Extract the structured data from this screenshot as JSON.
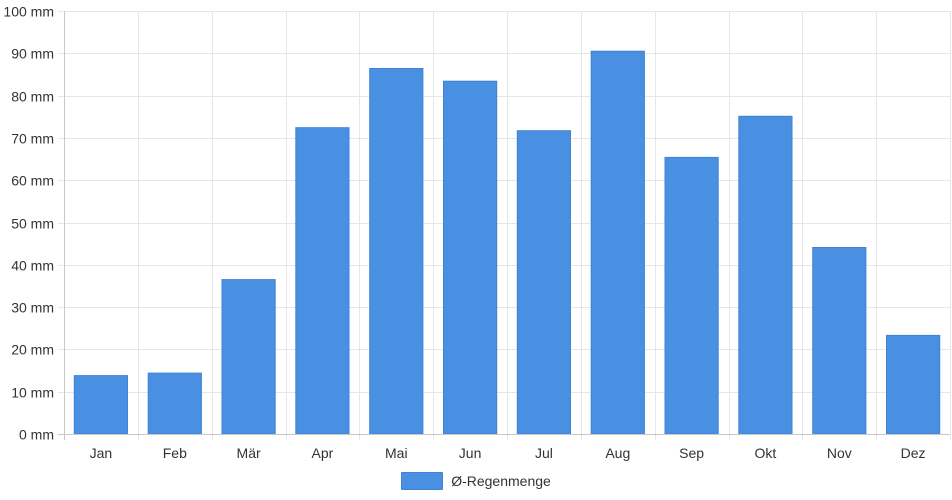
{
  "chart_data": {
    "type": "bar",
    "categories": [
      "Jan",
      "Feb",
      "Mär",
      "Apr",
      "Mai",
      "Jun",
      "Jul",
      "Aug",
      "Sep",
      "Okt",
      "Nov",
      "Dez"
    ],
    "series": [
      {
        "name": "Ø-Regenmenge",
        "values": [
          13.8,
          14.4,
          36.5,
          72.4,
          86.4,
          83.4,
          71.7,
          90.5,
          65.4,
          75.1,
          44.1,
          23.3
        ],
        "color": "#4a90e2"
      }
    ],
    "y_unit": "mm",
    "ylim": [
      0,
      100
    ],
    "y_ticks": [
      0,
      10,
      20,
      30,
      40,
      50,
      60,
      70,
      80,
      90,
      100
    ],
    "grid": true,
    "legend_position": "bottom-center",
    "title": "",
    "xlabel": "",
    "ylabel": ""
  }
}
